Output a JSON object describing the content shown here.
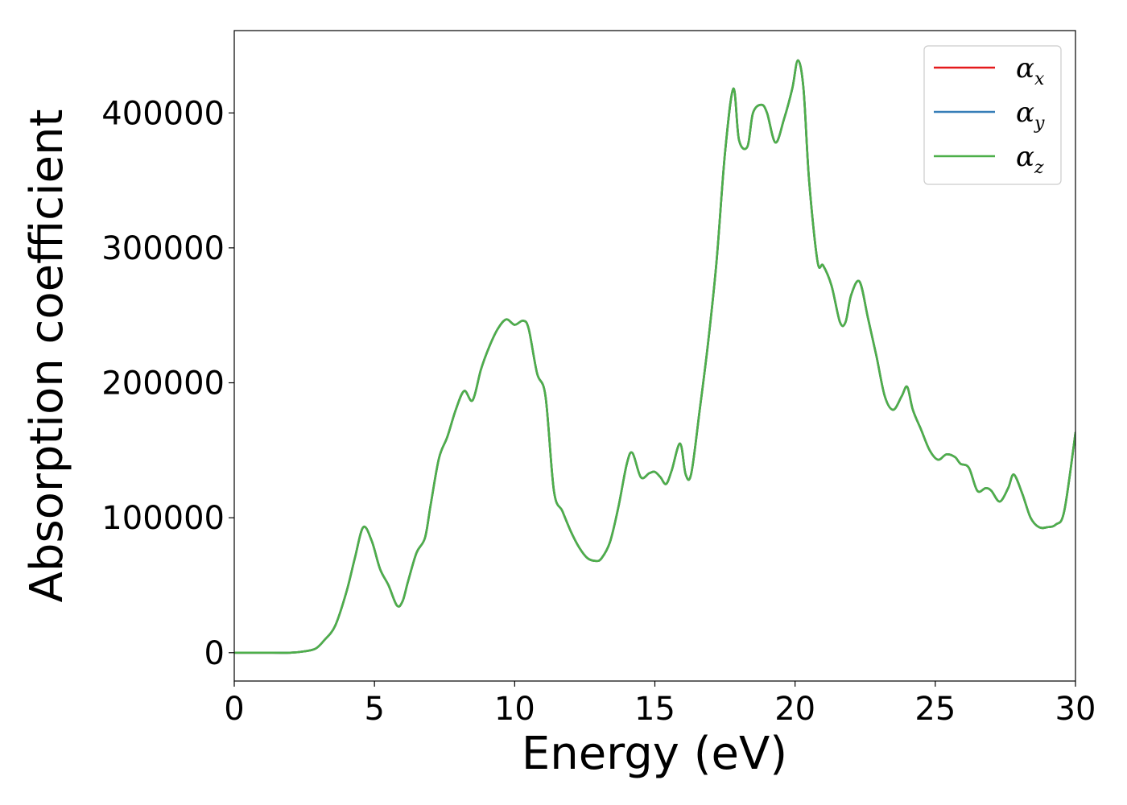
{
  "chart_data": {
    "type": "line",
    "xlabel": "Energy (eV)",
    "ylabel": "Absorption coefficient",
    "xlim": [
      0,
      30
    ],
    "ylim": [
      -21000,
      461000
    ],
    "xticks": [
      0,
      5,
      10,
      15,
      20,
      25,
      30
    ],
    "xtick_labels": [
      "0",
      "5",
      "10",
      "15",
      "20",
      "25",
      "30"
    ],
    "yticks": [
      0,
      100000,
      200000,
      300000,
      400000
    ],
    "ytick_labels": [
      "0",
      "100000",
      "200000",
      "300000",
      "400000"
    ],
    "grid": false,
    "legend_position": "top-right",
    "legend": [
      {
        "base": "α",
        "sub": "x",
        "color": "#e41a1c"
      },
      {
        "base": "α",
        "sub": "y",
        "color": "#377eb8"
      },
      {
        "base": "α",
        "sub": "z",
        "color": "#4daf4a"
      }
    ],
    "x": [
      0,
      1,
      2,
      2.5,
      2.9,
      3.2,
      3.6,
      4.0,
      4.3,
      4.6,
      4.9,
      5.2,
      5.5,
      5.8,
      6.0,
      6.2,
      6.5,
      6.8,
      7.0,
      7.3,
      7.6,
      7.9,
      8.2,
      8.5,
      8.8,
      9.1,
      9.4,
      9.7,
      10.0,
      10.3,
      10.5,
      10.8,
      11.1,
      11.4,
      11.7,
      12.0,
      12.3,
      12.6,
      12.9,
      13.1,
      13.4,
      13.7,
      14.0,
      14.2,
      14.5,
      14.8,
      15.0,
      15.2,
      15.4,
      15.6,
      15.9,
      16.1,
      16.3,
      16.6,
      16.9,
      17.2,
      17.5,
      17.8,
      18.0,
      18.3,
      18.5,
      18.8,
      19.0,
      19.3,
      19.6,
      19.9,
      20.1,
      20.3,
      20.5,
      20.8,
      21.0,
      21.3,
      21.6,
      21.8,
      22.0,
      22.3,
      22.6,
      22.9,
      23.2,
      23.5,
      23.8,
      24.0,
      24.2,
      24.5,
      24.8,
      25.1,
      25.4,
      25.7,
      25.9,
      26.2,
      26.5,
      26.8,
      27.0,
      27.3,
      27.6,
      27.8,
      28.1,
      28.4,
      28.7,
      29.0,
      29.3,
      29.6,
      30.0
    ],
    "series": [
      {
        "name": "α_x",
        "color": "#e41a1c",
        "values": [
          0,
          0,
          0,
          1000,
          3000,
          9000,
          20000,
          45000,
          70000,
          93000,
          83000,
          62000,
          50000,
          35000,
          38000,
          53000,
          74000,
          85000,
          109000,
          144000,
          160000,
          180000,
          194000,
          187000,
          210000,
          227000,
          240000,
          247000,
          243000,
          246000,
          240000,
          207000,
          190000,
          120000,
          105000,
          90000,
          78000,
          70000,
          68000,
          70000,
          82000,
          108000,
          140000,
          148000,
          130000,
          133000,
          134000,
          130000,
          125000,
          135000,
          155000,
          132000,
          133000,
          180000,
          230000,
          290000,
          370000,
          418000,
          380000,
          375000,
          400000,
          406000,
          400000,
          378000,
          395000,
          418000,
          439000,
          418000,
          350000,
          290000,
          287000,
          272000,
          245000,
          245000,
          265000,
          275000,
          248000,
          220000,
          190000,
          180000,
          190000,
          197000,
          180000,
          165000,
          150000,
          143000,
          147000,
          145000,
          140000,
          137000,
          120000,
          122000,
          120000,
          112000,
          122000,
          132000,
          118000,
          100000,
          93000,
          93000,
          95000,
          105000,
          163000
        ]
      },
      {
        "name": "α_y",
        "color": "#377eb8",
        "values": [
          0,
          0,
          0,
          1000,
          3000,
          9000,
          20000,
          45000,
          70000,
          93000,
          83000,
          62000,
          50000,
          35000,
          38000,
          53000,
          74000,
          85000,
          109000,
          144000,
          160000,
          180000,
          194000,
          187000,
          210000,
          227000,
          240000,
          247000,
          243000,
          246000,
          240000,
          207000,
          190000,
          120000,
          105000,
          90000,
          78000,
          70000,
          68000,
          70000,
          82000,
          108000,
          140000,
          148000,
          130000,
          133000,
          134000,
          130000,
          125000,
          135000,
          155000,
          132000,
          133000,
          180000,
          230000,
          290000,
          370000,
          418000,
          380000,
          375000,
          400000,
          406000,
          400000,
          378000,
          395000,
          418000,
          439000,
          418000,
          350000,
          290000,
          287000,
          272000,
          245000,
          245000,
          265000,
          275000,
          248000,
          220000,
          190000,
          180000,
          190000,
          197000,
          180000,
          165000,
          150000,
          143000,
          147000,
          145000,
          140000,
          137000,
          120000,
          122000,
          120000,
          112000,
          122000,
          132000,
          118000,
          100000,
          93000,
          93000,
          95000,
          105000,
          163000
        ]
      },
      {
        "name": "α_z",
        "color": "#4daf4a",
        "values": [
          0,
          0,
          0,
          1000,
          3000,
          9000,
          20000,
          45000,
          70000,
          93000,
          83000,
          62000,
          50000,
          35000,
          38000,
          53000,
          74000,
          85000,
          109000,
          144000,
          160000,
          180000,
          194000,
          187000,
          210000,
          227000,
          240000,
          247000,
          243000,
          246000,
          240000,
          207000,
          190000,
          120000,
          105000,
          90000,
          78000,
          70000,
          68000,
          70000,
          82000,
          108000,
          140000,
          148000,
          130000,
          133000,
          134000,
          130000,
          125000,
          135000,
          155000,
          132000,
          133000,
          180000,
          230000,
          290000,
          370000,
          418000,
          380000,
          375000,
          400000,
          406000,
          400000,
          378000,
          395000,
          418000,
          439000,
          418000,
          350000,
          290000,
          287000,
          272000,
          245000,
          245000,
          265000,
          275000,
          248000,
          220000,
          190000,
          180000,
          190000,
          197000,
          180000,
          165000,
          150000,
          143000,
          147000,
          145000,
          140000,
          137000,
          120000,
          122000,
          120000,
          112000,
          122000,
          132000,
          118000,
          100000,
          93000,
          93000,
          95000,
          105000,
          163000
        ]
      }
    ]
  }
}
